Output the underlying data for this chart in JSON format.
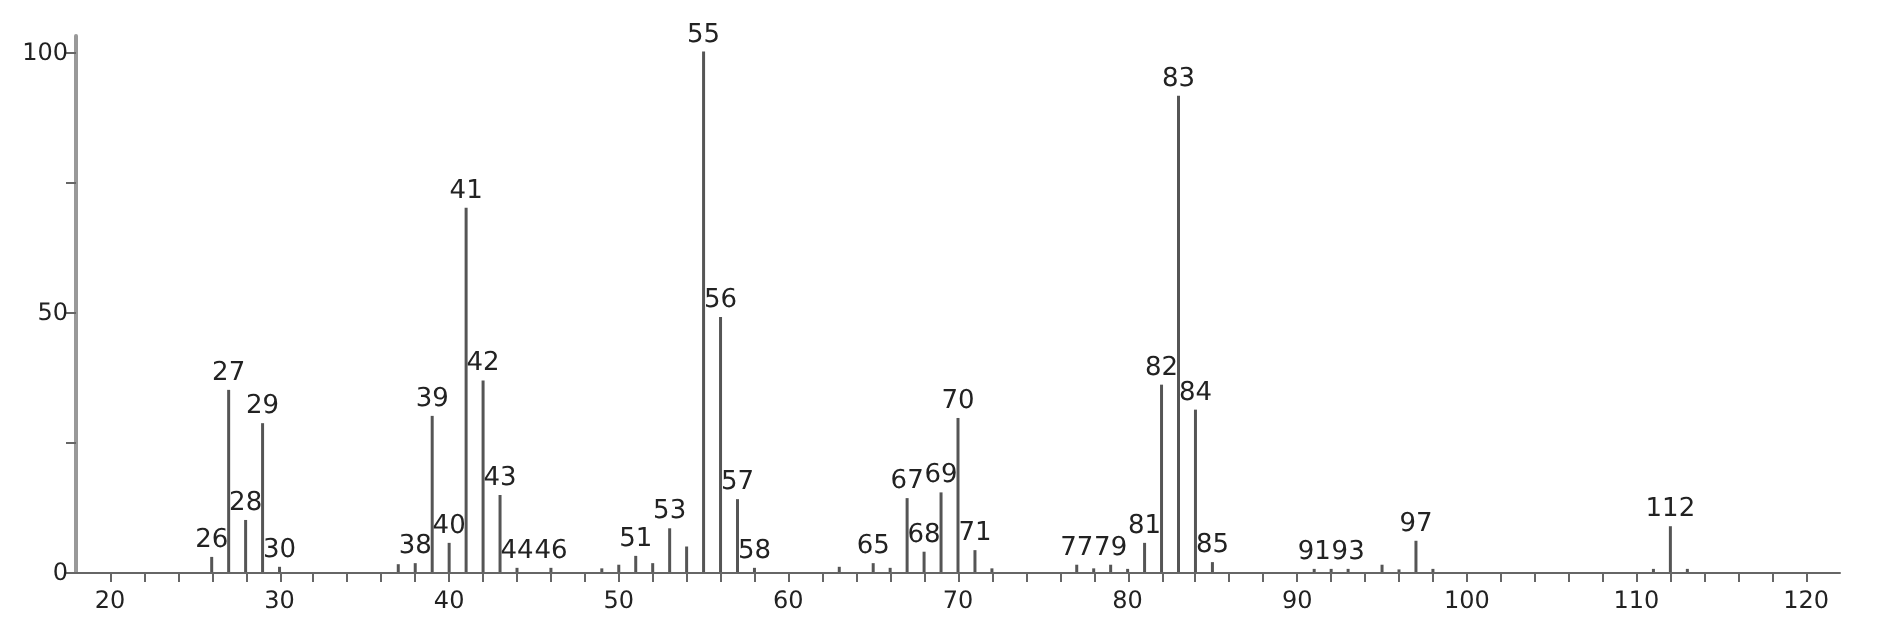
{
  "chart_data": {
    "type": "bar",
    "color": "#555555",
    "x": [
      26,
      27,
      28,
      29,
      30,
      37,
      38,
      39,
      40,
      41,
      42,
      43,
      44,
      46,
      49,
      50,
      51,
      52,
      53,
      54,
      55,
      56,
      57,
      58,
      63,
      65,
      66,
      67,
      68,
      69,
      70,
      71,
      72,
      77,
      78,
      79,
      80,
      81,
      82,
      83,
      84,
      85,
      91,
      92,
      93,
      95,
      96,
      97,
      98,
      111,
      112,
      113
    ],
    "values": [
      2.9,
      35,
      10,
      28.6,
      1,
      1.5,
      1.7,
      30,
      5.6,
      70,
      36.8,
      14.8,
      0.8,
      0.8,
      0.7,
      1.4,
      3.1,
      1.7,
      8.4,
      4.9,
      100,
      49,
      14,
      0.8,
      1,
      1.7,
      0.8,
      14.2,
      3.9,
      15.3,
      29.6,
      4.2,
      0.7,
      1.4,
      0.7,
      1.4,
      0.6,
      5.6,
      36,
      91.5,
      31.2,
      1.9,
      0.6,
      0.6,
      0.6,
      1.4,
      0.5,
      6,
      0.6,
      0.6,
      8.8,
      0.6
    ],
    "annotations": [
      {
        "text": "26",
        "x": 26,
        "y": 2.9
      },
      {
        "text": "27",
        "x": 27,
        "y": 35
      },
      {
        "text": "28",
        "x": 28,
        "y": 10
      },
      {
        "text": "29",
        "x": 29,
        "y": 28.6
      },
      {
        "text": "30",
        "x": 30,
        "y": 1
      },
      {
        "text": "38",
        "x": 38,
        "y": 1.7
      },
      {
        "text": "39",
        "x": 39,
        "y": 30
      },
      {
        "text": "40",
        "x": 40,
        "y": 5.6
      },
      {
        "text": "41",
        "x": 41,
        "y": 70
      },
      {
        "text": "42",
        "x": 42,
        "y": 36.8
      },
      {
        "text": "43",
        "x": 43,
        "y": 14.8
      },
      {
        "text": "44",
        "x": 44,
        "y": 0.8
      },
      {
        "text": "46",
        "x": 46,
        "y": 0.8
      },
      {
        "text": "51",
        "x": 51,
        "y": 3.1
      },
      {
        "text": "53",
        "x": 53,
        "y": 8.4
      },
      {
        "text": "55",
        "x": 55,
        "y": 100
      },
      {
        "text": "56",
        "x": 56,
        "y": 49
      },
      {
        "text": "57",
        "x": 57,
        "y": 14
      },
      {
        "text": "58",
        "x": 58,
        "y": 0.8
      },
      {
        "text": "65",
        "x": 65,
        "y": 1.7
      },
      {
        "text": "67",
        "x": 67,
        "y": 14.2
      },
      {
        "text": "68",
        "x": 68,
        "y": 3.9
      },
      {
        "text": "69",
        "x": 69,
        "y": 15.3
      },
      {
        "text": "70",
        "x": 70,
        "y": 29.6
      },
      {
        "text": "71",
        "x": 71,
        "y": 4.2
      },
      {
        "text": "77",
        "x": 77,
        "y": 1.4
      },
      {
        "text": "79",
        "x": 79,
        "y": 1.4
      },
      {
        "text": "81",
        "x": 81,
        "y": 5.6
      },
      {
        "text": "82",
        "x": 82,
        "y": 36
      },
      {
        "text": "83",
        "x": 83,
        "y": 91.5
      },
      {
        "text": "84",
        "x": 84,
        "y": 31.2
      },
      {
        "text": "85",
        "x": 85,
        "y": 1.9
      },
      {
        "text": "91",
        "x": 91,
        "y": 0.6
      },
      {
        "text": "93",
        "x": 93,
        "y": 0.6
      },
      {
        "text": "97",
        "x": 97,
        "y": 6
      },
      {
        "text": "112",
        "x": 112,
        "y": 8.8
      }
    ],
    "xlim": [
      18,
      122
    ],
    "xticks": [
      20,
      {
        "value": 22,
        "label": null
      },
      {
        "value": 24,
        "label": null
      },
      {
        "value": 26,
        "label": null
      },
      {
        "value": 28,
        "label": null
      },
      30,
      {
        "value": 32,
        "label": null
      },
      {
        "value": 34,
        "label": null
      },
      {
        "value": 36,
        "label": null
      },
      {
        "value": 38,
        "label": null
      },
      40,
      {
        "value": 42,
        "label": null
      },
      {
        "value": 44,
        "label": null
      },
      {
        "value": 46,
        "label": null
      },
      {
        "value": 48,
        "label": null
      },
      50,
      {
        "value": 52,
        "label": null
      },
      {
        "value": 54,
        "label": null
      },
      {
        "value": 56,
        "label": null
      },
      {
        "value": 58,
        "label": null
      },
      60,
      {
        "value": 62,
        "label": null
      },
      {
        "value": 64,
        "label": null
      },
      {
        "value": 66,
        "label": null
      },
      {
        "value": 68,
        "label": null
      },
      70,
      {
        "value": 72,
        "label": null
      },
      {
        "value": 74,
        "label": null
      },
      {
        "value": 76,
        "label": null
      },
      {
        "value": 78,
        "label": null
      },
      80,
      {
        "value": 82,
        "label": null
      },
      {
        "value": 84,
        "label": null
      },
      {
        "value": 86,
        "label": null
      },
      {
        "value": 88,
        "label": null
      },
      90,
      {
        "value": 92,
        "label": null
      },
      {
        "value": 94,
        "label": null
      },
      {
        "value": 96,
        "label": null
      },
      {
        "value": 98,
        "label": null
      },
      100,
      {
        "value": 102,
        "label": null
      },
      {
        "value": 104,
        "label": null
      },
      {
        "value": 106,
        "label": null
      },
      {
        "value": 108,
        "label": null
      },
      110,
      {
        "value": 112,
        "label": null
      },
      {
        "value": 114,
        "label": null
      },
      {
        "value": 116,
        "label": null
      },
      {
        "value": 118,
        "label": null
      },
      120
    ],
    "ylim": [
      0,
      103
    ],
    "yticks": [
      0,
      {
        "value": 25,
        "label": null
      },
      50,
      {
        "value": 75,
        "label": null
      },
      100
    ]
  }
}
